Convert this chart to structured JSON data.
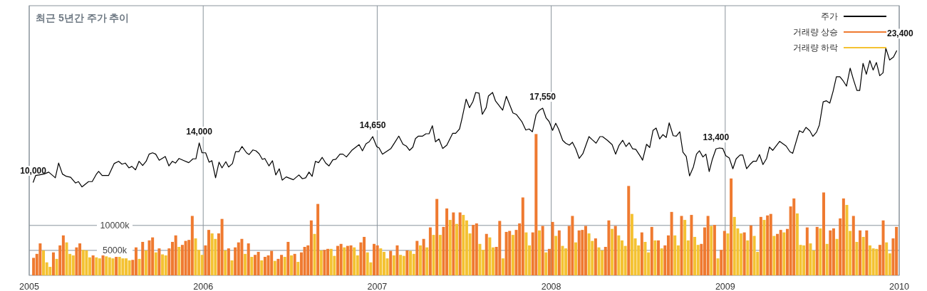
{
  "chart_data": {
    "type": "line",
    "title": "최근 5년간 주가 추이",
    "xlim": [
      2005,
      2010
    ],
    "xticks": [
      2005,
      2006,
      2007,
      2008,
      2009,
      2010
    ],
    "ylim": [
      500,
      28000
    ],
    "y2lim": [
      0,
      54000
    ],
    "y2ticks": [
      {
        "value": 5000,
        "label": "5000k"
      },
      {
        "value": 10000,
        "label": "10000k"
      }
    ],
    "grid": true,
    "legend": "top right",
    "series": [
      {
        "name": "거래량 상승",
        "type": "bar",
        "axis": "y2",
        "color": "#ef7a30",
        "x": [
          2005.025,
          2005.044,
          2005.063,
          2005.139,
          2005.177,
          2005.196,
          2005.272,
          2005.291,
          2005.367,
          2005.424,
          2005.5,
          2005.595,
          2005.614,
          2005.652,
          2005.69,
          2005.709,
          2005.747,
          2005.804,
          2005.823,
          2005.842,
          2005.88,
          2005.899,
          2005.918,
          2005.937,
          2006.013,
          2006.032,
          2006.089,
          2006.108,
          2006.146,
          2006.184,
          2006.203,
          2006.222,
          2006.26,
          2006.298,
          2006.317,
          2006.355,
          2006.374,
          2006.393,
          2006.431,
          2006.45,
          2006.488,
          2006.526,
          2006.564,
          2006.583,
          2006.602,
          2006.621,
          2006.659,
          2006.697,
          2006.716,
          2006.773,
          2006.792,
          2006.83,
          2006.849,
          2006.906,
          2006.925,
          2006.982,
          2007.001,
          2007.077,
          2007.115,
          2007.172,
          2007.229,
          2007.267,
          2007.305,
          2007.343,
          2007.381,
          2007.4,
          2007.438,
          2007.476,
          2007.552,
          2007.571,
          2007.628,
          2007.685,
          2007.704,
          2007.742,
          2007.761,
          2007.799,
          2007.818,
          2007.837,
          2007.894,
          2007.913,
          2007.951,
          2007.989,
          2008.008,
          2008.046,
          2008.103,
          2008.122,
          2008.16,
          2008.179,
          2008.198,
          2008.255,
          2008.312,
          2008.331,
          2008.369,
          2008.445,
          2008.521,
          2008.578,
          2008.616,
          2008.654,
          2008.673,
          2008.692,
          2008.749,
          2008.806,
          2008.863,
          2008.882,
          2008.901,
          2008.939,
          2008.977,
          2008.996,
          2009.034,
          2009.11,
          2009.148,
          2009.205,
          2009.243,
          2009.262,
          2009.3,
          2009.319,
          2009.357,
          2009.376,
          2009.395,
          2009.471,
          2009.528,
          2009.566,
          2009.604,
          2009.623,
          2009.661,
          2009.68,
          2009.737,
          2009.775,
          2009.813,
          2009.889,
          2009.908,
          2009.965,
          2009.984
        ],
        "values": [
          3500,
          4300,
          6400,
          4600,
          6000,
          8000,
          5600,
          6400,
          4000,
          4100,
          3700,
          3100,
          5600,
          6700,
          7000,
          7600,
          5400,
          5400,
          6700,
          8000,
          6100,
          6900,
          7100,
          11900,
          6000,
          9100,
          8400,
          11300,
          5400,
          5600,
          6600,
          7300,
          6400,
          4100,
          4700,
          3700,
          4000,
          4900,
          3300,
          4100,
          6700,
          4300,
          4600,
          5700,
          6000,
          11000,
          14300,
          5100,
          5300,
          5900,
          6300,
          5900,
          6000,
          6600,
          7700,
          6300,
          6000,
          4900,
          6000,
          5000,
          6900,
          7300,
          9600,
          15300,
          9700,
          13400,
          12600,
          12600,
          10100,
          10400,
          8300,
          5700,
          10900,
          8700,
          8900,
          9100,
          10400,
          15600,
          8600,
          28300,
          9900,
          5300,
          10700,
          9000,
          9900,
          11900,
          9000,
          9100,
          9900,
          7400,
          5700,
          11000,
          9900,
          17900,
          8600,
          9700,
          7000,
          6000,
          8000,
          12700,
          11900,
          12100,
          6300,
          9600,
          11900,
          10100,
          5100,
          8900,
          19400,
          8600,
          10000,
          11700,
          12000,
          12300,
          8300,
          9100,
          9300,
          13800,
          15400,
          9600,
          9700,
          16600,
          9000,
          9400,
          11400,
          15400,
          11900,
          9000,
          9000,
          6100,
          11000,
          7400,
          9700
        ]
      },
      {
        "name": "거래량 하락",
        "type": "bar",
        "axis": "y2",
        "color": "#f4c232",
        "x": [
          2005.082,
          2005.101,
          2005.12,
          2005.158,
          2005.215,
          2005.234,
          2005.253,
          2005.31,
          2005.329,
          2005.348,
          2005.386,
          2005.405,
          2005.443,
          2005.462,
          2005.481,
          2005.519,
          2005.538,
          2005.557,
          2005.576,
          2005.633,
          2005.671,
          2005.728,
          2005.766,
          2005.785,
          2005.861,
          2005.956,
          2005.975,
          2005.994,
          2006.051,
          2006.07,
          2006.127,
          2006.165,
          2006.241,
          2006.279,
          2006.336,
          2006.412,
          2006.469,
          2006.507,
          2006.545,
          2006.64,
          2006.678,
          2006.735,
          2006.754,
          2006.811,
          2006.868,
          2006.887,
          2006.944,
          2006.963,
          2007.02,
          2007.039,
          2007.058,
          2007.096,
          2007.134,
          2007.153,
          2007.191,
          2007.21,
          2007.248,
          2007.286,
          2007.324,
          2007.362,
          2007.419,
          2007.457,
          2007.495,
          2007.514,
          2007.533,
          2007.59,
          2007.609,
          2007.647,
          2007.666,
          2007.723,
          2007.78,
          2007.856,
          2007.875,
          2007.932,
          2007.97,
          2008.027,
          2008.065,
          2008.084,
          2008.141,
          2008.217,
          2008.236,
          2008.274,
          2008.293,
          2008.35,
          2008.388,
          2008.407,
          2008.426,
          2008.464,
          2008.483,
          2008.502,
          2008.54,
          2008.559,
          2008.597,
          2008.635,
          2008.711,
          2008.73,
          2008.768,
          2008.787,
          2008.825,
          2008.844,
          2008.92,
          2008.958,
          2009.015,
          2009.053,
          2009.072,
          2009.091,
          2009.129,
          2009.167,
          2009.186,
          2009.224,
          2009.281,
          2009.338,
          2009.414,
          2009.433,
          2009.452,
          2009.49,
          2009.509,
          2009.547,
          2009.585,
          2009.642,
          2009.699,
          2009.718,
          2009.756,
          2009.794,
          2009.832,
          2009.851,
          2009.87,
          2009.927,
          2009.946
        ],
        "values": [
          5000,
          2600,
          1700,
          3300,
          6600,
          4300,
          4000,
          5100,
          5000,
          3600,
          3600,
          3400,
          3800,
          3600,
          3400,
          3700,
          3400,
          3400,
          3000,
          3300,
          5000,
          4600,
          4200,
          4000,
          5700,
          7400,
          5100,
          4100,
          8400,
          7300,
          5000,
          3000,
          4300,
          3700,
          3000,
          2900,
          3700,
          4000,
          2700,
          8300,
          5000,
          5300,
          3900,
          5600,
          5600,
          4000,
          4600,
          2600,
          5400,
          4700,
          3400,
          4000,
          4100,
          3900,
          4900,
          4300,
          6000,
          5600,
          8100,
          8100,
          11100,
          10300,
          12100,
          11000,
          8400,
          6300,
          5100,
          7600,
          5600,
          3400,
          8100,
          8600,
          6000,
          9000,
          4600,
          7900,
          5900,
          5400,
          6600,
          8400,
          6900,
          5600,
          5000,
          9300,
          8000,
          7000,
          5900,
          12300,
          7400,
          6000,
          6700,
          4600,
          7000,
          5400,
          8000,
          6000,
          11100,
          7000,
          7700,
          6100,
          9900,
          3400,
          8400,
          11700,
          9400,
          8400,
          7000,
          7900,
          4700,
          11100,
          7900,
          8600,
          12400,
          6100,
          6000,
          6400,
          5000,
          9400,
          6300,
          7300,
          14100,
          8900,
          6700,
          7700,
          6000,
          5400,
          5300,
          6600,
          4400
        ]
      },
      {
        "name": "주가",
        "color": "#000000",
        "value_labels": [
          "10,000",
          null,
          null,
          null,
          null,
          null,
          null,
          null,
          null,
          null,
          null,
          null,
          null,
          null,
          null,
          null,
          null,
          null,
          null,
          null,
          null,
          null,
          null,
          null,
          null,
          null,
          null,
          null,
          null,
          null,
          null,
          null,
          null,
          null,
          null,
          null,
          null,
          null,
          null,
          null,
          null,
          null,
          "14,000",
          null,
          null,
          null,
          null,
          null,
          null,
          null,
          null,
          null,
          null,
          null,
          null,
          null,
          null,
          null,
          null,
          null,
          null,
          null,
          null,
          null,
          null,
          null,
          null,
          null,
          null,
          null,
          null,
          null,
          null,
          null,
          null,
          null,
          null,
          null,
          null,
          null,
          null,
          null,
          null,
          null,
          null,
          null,
          null,
          null,
          null,
          null,
          "14,650",
          null,
          null,
          null,
          null,
          null,
          null,
          null,
          null,
          null,
          null,
          null,
          null,
          null,
          null,
          null,
          null,
          null,
          null,
          null,
          null,
          null,
          null,
          null,
          null,
          null,
          null,
          null,
          null,
          null,
          null,
          null,
          null,
          null,
          null,
          null,
          null,
          null,
          null,
          null,
          null,
          null,
          null,
          null,
          null,
          "17,550",
          null,
          null,
          null,
          null,
          null,
          null,
          null,
          null,
          null,
          null,
          null,
          null,
          null,
          null,
          null,
          null,
          null,
          null,
          null,
          null,
          null,
          null,
          null,
          null,
          null,
          null,
          null,
          null,
          null,
          null,
          null,
          null,
          null,
          null,
          null,
          null,
          null,
          null,
          null,
          null,
          null,
          null,
          null,
          null,
          null,
          null,
          null,
          null,
          null,
          "13,400",
          null,
          null,
          null,
          null,
          null,
          null,
          null,
          null,
          null,
          null,
          null,
          null,
          null,
          null,
          null,
          null,
          null,
          null,
          null,
          null,
          null,
          null,
          null,
          null,
          null,
          null,
          null,
          null,
          null,
          null,
          null,
          null,
          null,
          null,
          null,
          null,
          null,
          null,
          null,
          null,
          null,
          null,
          null,
          null,
          null,
          null,
          null,
          null,
          null,
          null,
          "23,400"
        ],
        "x": [
          2005.023,
          2005.037,
          2005.057,
          2005.085,
          2005.112,
          2005.15,
          2005.169,
          2005.191,
          2005.214,
          2005.238,
          2005.266,
          2005.283,
          2005.303,
          2005.341,
          2005.362,
          2005.385,
          2005.399,
          2005.419,
          2005.456,
          2005.488,
          2005.514,
          2005.533,
          2005.552,
          2005.573,
          2005.59,
          2005.611,
          2005.631,
          2005.652,
          2005.672,
          2005.689,
          2005.709,
          2005.727,
          2005.747,
          2005.782,
          2005.803,
          2005.823,
          2005.841,
          2005.861,
          2005.884,
          2005.917,
          2005.941,
          2005.958,
          2005.977,
          2005.993,
          2006.014,
          2006.034,
          2006.05,
          2006.071,
          2006.091,
          2006.108,
          2006.13,
          2006.146,
          2006.168,
          2006.186,
          2006.205,
          2006.223,
          2006.249,
          2006.264,
          2006.286,
          2006.303,
          2006.321,
          2006.34,
          2006.354,
          2006.378,
          2006.398,
          2006.417,
          2006.437,
          2006.454,
          2006.477,
          2006.518,
          2006.55,
          2006.57,
          2006.589,
          2006.608,
          2006.626,
          2006.645,
          2006.663,
          2006.684,
          2006.704,
          2006.723,
          2006.745,
          2006.762,
          2006.786,
          2006.803,
          2006.823,
          2006.854,
          2006.896,
          2006.915,
          2006.936,
          2006.954,
          2006.974,
          2006.997,
          2007.011,
          2007.03,
          2007.079,
          2007.1,
          2007.124,
          2007.148,
          2007.167,
          2007.186,
          2007.205,
          2007.22,
          2007.237,
          2007.261,
          2007.28,
          2007.298,
          2007.317,
          2007.335,
          2007.355,
          2007.376,
          2007.4,
          2007.434,
          2007.451,
          2007.473,
          2007.487,
          2007.511,
          2007.53,
          2007.55,
          2007.566,
          2007.585,
          2007.604,
          2007.626,
          2007.639,
          2007.663,
          2007.68,
          2007.721,
          2007.742,
          2007.78,
          2007.799,
          2007.831,
          2007.854,
          2007.873,
          2007.892,
          2007.913,
          2007.93,
          2007.951,
          2007.971,
          2007.988,
          2008.008,
          2008.026,
          2008.042,
          2008.066,
          2008.083,
          2008.104,
          2008.122,
          2008.141,
          2008.161,
          2008.182,
          2008.217,
          2008.237,
          2008.258,
          2008.28,
          2008.295,
          2008.323,
          2008.35,
          2008.37,
          2008.389,
          2008.411,
          2008.43,
          2008.448,
          2008.468,
          2008.486,
          2008.518,
          2008.525,
          2008.548,
          2008.566,
          2008.585,
          2008.603,
          2008.623,
          2008.642,
          2008.661,
          2008.678,
          2008.701,
          2008.719,
          2008.739,
          2008.757,
          2008.776,
          2008.795,
          2008.817,
          2008.835,
          2008.852,
          2008.872,
          2008.889,
          2008.908,
          2008.926,
          2008.947,
          2008.967,
          2008.986,
          2009.003,
          2009.023,
          2009.044,
          2009.063,
          2009.085,
          2009.101,
          2009.123,
          2009.142,
          2009.161,
          2009.179,
          2009.197,
          2009.217,
          2009.238,
          2009.254,
          2009.273,
          2009.313,
          2009.35,
          2009.372,
          2009.388,
          2009.426,
          2009.446,
          2009.464,
          2009.486,
          2009.504,
          2009.525,
          2009.541,
          2009.563,
          2009.582,
          2009.601,
          2009.62,
          2009.639,
          2009.659,
          2009.678,
          2009.697,
          2009.718,
          2009.736,
          2009.757,
          2009.773,
          2009.792,
          2009.811,
          2009.831,
          2009.85,
          2009.869,
          2009.888,
          2009.907,
          2009.923,
          2009.945,
          2009.967,
          2009.985
        ],
        "values": [
          10000,
          10680,
          10740,
          10830,
          11030,
          10450,
          11950,
          10830,
          10590,
          10500,
          9920,
          10060,
          9520,
          10060,
          10060,
          10790,
          11100,
          10680,
          10680,
          11900,
          12130,
          11840,
          11950,
          11460,
          11610,
          11260,
          12130,
          11700,
          12130,
          12860,
          13000,
          12860,
          12240,
          12620,
          11660,
          12130,
          11950,
          12420,
          12240,
          11990,
          12380,
          12380,
          14000,
          13000,
          13000,
          12040,
          12190,
          10450,
          12040,
          11460,
          12090,
          11550,
          11900,
          13110,
          13110,
          13640,
          13000,
          12820,
          13290,
          13200,
          12910,
          12330,
          12420,
          11660,
          12190,
          10740,
          11370,
          10210,
          10540,
          10250,
          10740,
          10350,
          10450,
          11030,
          10590,
          12130,
          11990,
          12530,
          11950,
          11660,
          12280,
          12330,
          12860,
          12860,
          12570,
          13250,
          13830,
          13200,
          13930,
          14120,
          14650,
          13640,
          13490,
          12860,
          13440,
          14020,
          14700,
          13870,
          13690,
          13250,
          13580,
          14450,
          14700,
          14700,
          14940,
          14940,
          15760,
          14120,
          14410,
          13440,
          13780,
          14990,
          14990,
          15430,
          16480,
          18470,
          17600,
          18220,
          19150,
          19090,
          16920,
          17600,
          18780,
          19150,
          18280,
          17350,
          18760,
          17060,
          16920,
          16190,
          15320,
          15430,
          15140,
          16880,
          17310,
          17550,
          16540,
          16190,
          15280,
          16010,
          15430,
          14270,
          13980,
          13780,
          14070,
          13400,
          12420,
          12910,
          14650,
          14310,
          13980,
          14650,
          14650,
          14270,
          13830,
          12860,
          13730,
          14270,
          13640,
          14020,
          13400,
          13350,
          12480,
          12240,
          13870,
          13540,
          15280,
          15520,
          14410,
          14850,
          14560,
          16050,
          14740,
          14700,
          15140,
          13060,
          12620,
          10640,
          11550,
          12860,
          13200,
          12570,
          12860,
          11080,
          12330,
          13400,
          13490,
          13440,
          12710,
          12480,
          11370,
          12380,
          12770,
          12770,
          11370,
          11800,
          12130,
          12130,
          12820,
          11800,
          12420,
          13580,
          13250,
          14160,
          13690,
          13110,
          12950,
          15250,
          15060,
          15590,
          15250,
          14670,
          15110,
          15830,
          18200,
          18300,
          18060,
          19270,
          20760,
          20760,
          20330,
          19800,
          21630,
          20520,
          19360,
          19360,
          22120,
          21010,
          22410,
          21440,
          22210,
          20860,
          21150,
          23660,
          22460,
          22750,
          23400
        ]
      }
    ]
  }
}
